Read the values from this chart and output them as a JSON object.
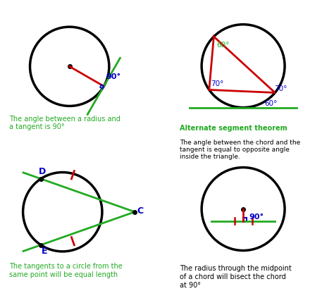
{
  "bg_color": "#ffffff",
  "circle_lw": 2.5,
  "green_color": "#22aa22",
  "red_color": "#cc0000",
  "blue_color": "#0000cc",
  "panel1_label": "The angle between a radius and\na tangent is 90°",
  "panel2_title": "Alternate segment theorem",
  "panel2_body": "The angle between the chord and the\ntangent is equal to opposite angle\ninside the triangle.",
  "panel3_label": "The tangents to a circle from the\nsame point will be equal length",
  "panel4_label": "The radius through the midpoint\nof a chord will bisect the chord\nat 90°"
}
